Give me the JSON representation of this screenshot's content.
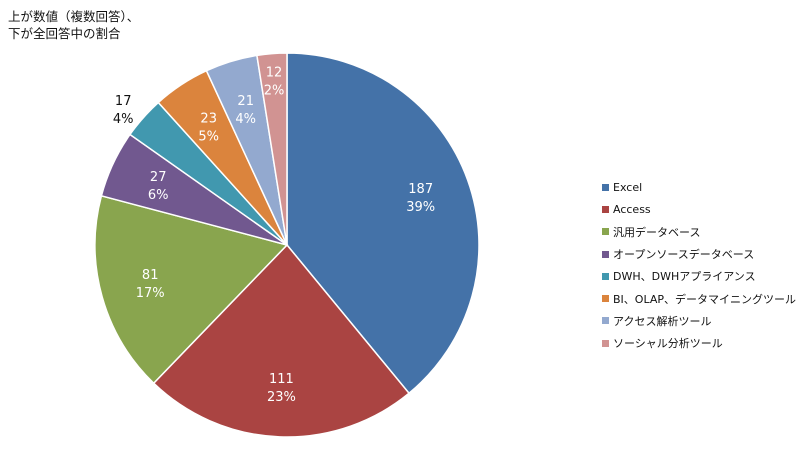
{
  "note": {
    "line1": "上が数値（複数回答）、",
    "line2": "下が全回答中の割合"
  },
  "chart_data": {
    "type": "pie",
    "categories": [
      "Excel",
      "Access",
      "汎用データベース",
      "オープンソースデータベース",
      "DWH、DWHアプライアンス",
      "BI、OLAP、データマイニングツール",
      "アクセス解析ツール",
      "ソーシャル分析ツール"
    ],
    "values": [
      187,
      111,
      81,
      27,
      17,
      23,
      21,
      12
    ],
    "percent_labels": [
      "39%",
      "23%",
      "17%",
      "6%",
      "4%",
      "5%",
      "4%",
      "2%"
    ],
    "colors": [
      "#4472a8",
      "#aa4442",
      "#89a54e",
      "#71588f",
      "#4198af",
      "#db843d",
      "#93a9cf",
      "#d19392"
    ],
    "legend_position": "right"
  }
}
